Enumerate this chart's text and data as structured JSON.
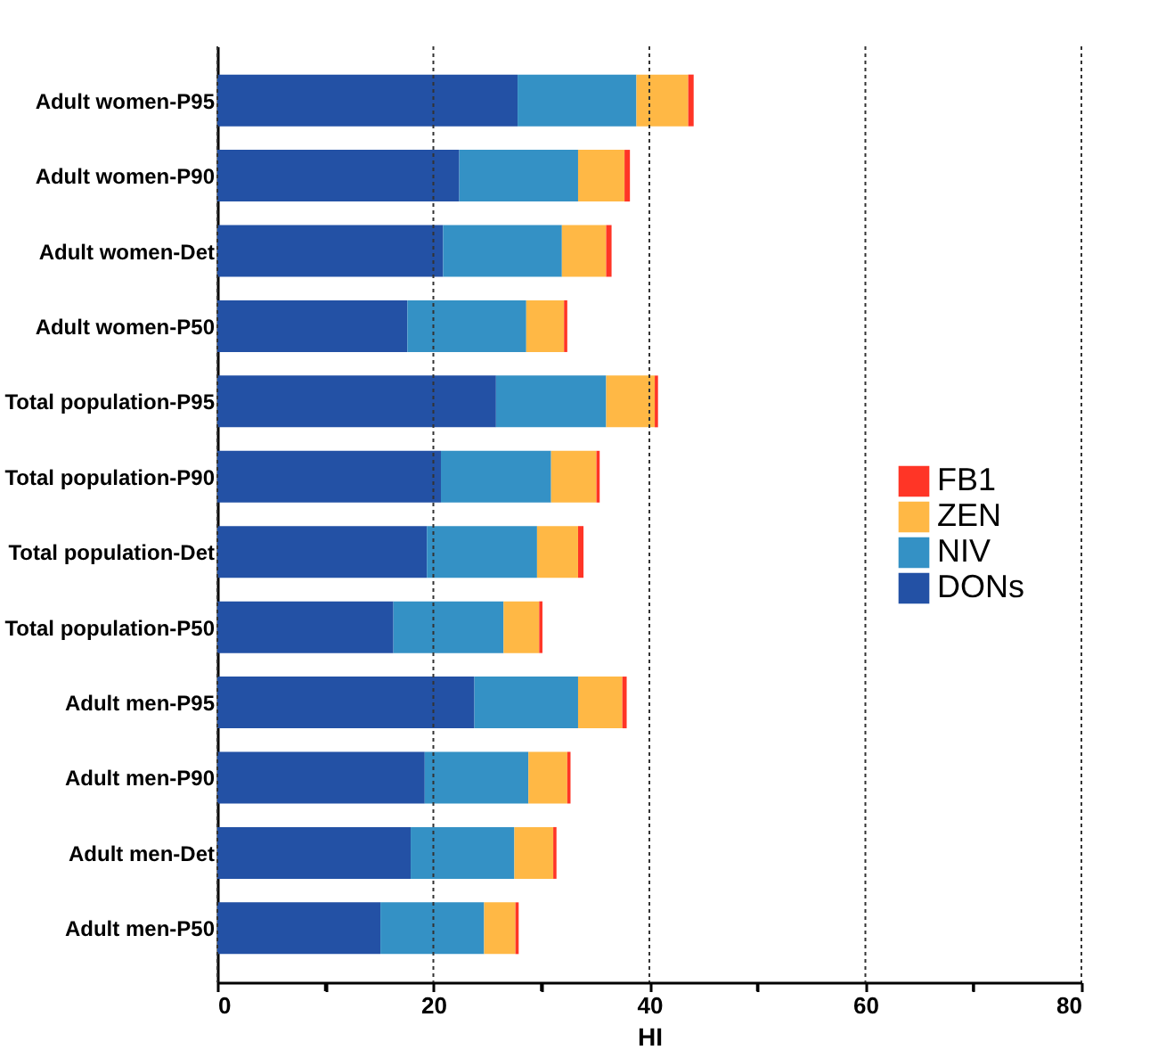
{
  "chart_data": {
    "type": "bar",
    "orientation": "horizontal",
    "stacked": true,
    "xlabel": "HI",
    "categories": [
      "Adult women-P95",
      "Adult women-P90",
      "Adult women-Det",
      "Adult women-P50",
      "Total population-P95",
      "Total population-P90",
      "Total population-Det",
      "Total population-P50",
      "Adult men-P95",
      "Adult men-P90",
      "Adult men-Det",
      "Adult men-P50"
    ],
    "series": [
      {
        "name": "DONs",
        "color": "#2351a5",
        "values": [
          27.8,
          22.4,
          20.9,
          17.6,
          25.8,
          20.7,
          19.4,
          16.3,
          23.8,
          19.2,
          17.9,
          15.1
        ]
      },
      {
        "name": "NIV",
        "color": "#3491c5",
        "values": [
          11.0,
          11.0,
          11.0,
          11.0,
          10.2,
          10.2,
          10.2,
          10.2,
          9.6,
          9.6,
          9.6,
          9.6
        ]
      },
      {
        "name": "ZEN",
        "color": "#ffb845",
        "values": [
          4.8,
          4.3,
          4.1,
          3.5,
          4.5,
          4.2,
          3.8,
          3.3,
          4.1,
          3.6,
          3.6,
          2.9
        ]
      },
      {
        "name": "FB1",
        "color": "#ff3526",
        "values": [
          0.5,
          0.5,
          0.5,
          0.3,
          0.3,
          0.3,
          0.5,
          0.3,
          0.4,
          0.3,
          0.3,
          0.3
        ]
      }
    ],
    "xlim": [
      0,
      80
    ],
    "xticks": [
      0,
      {
        "value": 10,
        "label": null
      },
      20,
      {
        "value": 30,
        "label": null
      },
      40,
      {
        "value": 50,
        "label": null
      },
      60,
      {
        "value": 70,
        "label": null
      },
      80
    ],
    "grid": "x",
    "legend": "right"
  }
}
